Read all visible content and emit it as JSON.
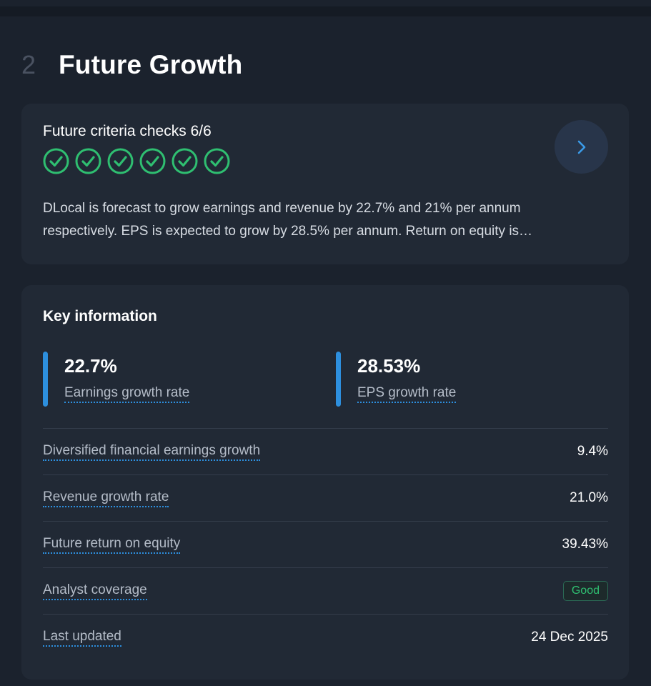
{
  "section": {
    "number": "2",
    "title": "Future Growth"
  },
  "criteria": {
    "title": "Future criteria checks 6/6",
    "checks_passed": 6,
    "checks_total": 6,
    "check_icon": "check-circle-icon",
    "check_color": "#2fbf71",
    "description": "DLocal is forecast to grow earnings and revenue by 22.7% and 21% per annum respectively. EPS is expected to grow by 28.5% per annum. Return on equity is…",
    "arrow_icon": "chevron-right-icon"
  },
  "key_info": {
    "title": "Key information",
    "metrics": [
      {
        "value": "22.7%",
        "label": "Earnings growth rate"
      },
      {
        "value": "28.53%",
        "label": "EPS growth rate"
      }
    ],
    "rows": [
      {
        "label": "Diversified financial earnings growth",
        "value": "9.4%"
      },
      {
        "label": "Revenue growth rate",
        "value": "21.0%"
      },
      {
        "label": "Future return on equity",
        "value": "39.43%"
      },
      {
        "label": "Analyst coverage",
        "badge": "Good"
      },
      {
        "label": "Last updated",
        "value": "24 Dec 2025"
      }
    ]
  },
  "colors": {
    "accent": "#2d8fde",
    "good": "#2fbf71",
    "background": "#1b222d",
    "card": "#212935"
  }
}
